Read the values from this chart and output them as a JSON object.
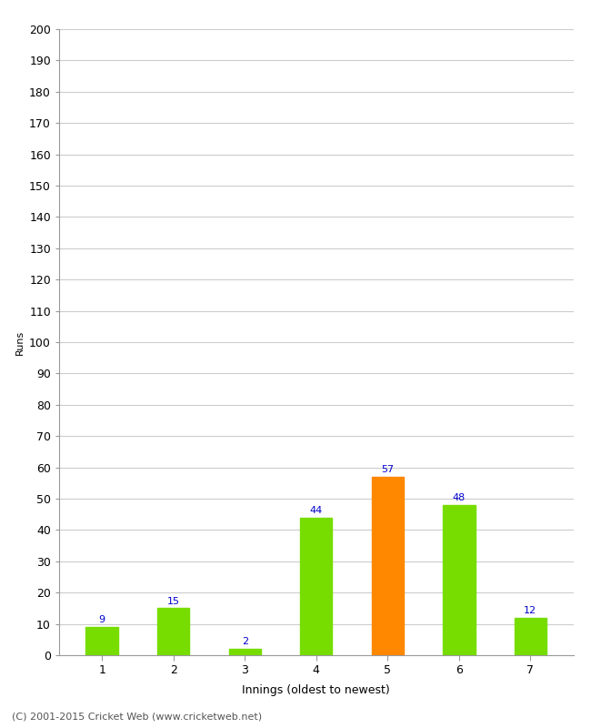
{
  "categories": [
    "1",
    "2",
    "3",
    "4",
    "5",
    "6",
    "7"
  ],
  "values": [
    9,
    15,
    2,
    44,
    57,
    48,
    12
  ],
  "bar_colors": [
    "#77dd00",
    "#77dd00",
    "#77dd00",
    "#77dd00",
    "#ff8800",
    "#77dd00",
    "#77dd00"
  ],
  "xlabel": "Innings (oldest to newest)",
  "ylabel": "Runs",
  "ylim": [
    0,
    200
  ],
  "yticks": [
    0,
    10,
    20,
    30,
    40,
    50,
    60,
    70,
    80,
    90,
    100,
    110,
    120,
    130,
    140,
    150,
    160,
    170,
    180,
    190,
    200
  ],
  "label_color": "#0000cc",
  "label_fontsize": 8,
  "footer": "(C) 2001-2015 Cricket Web (www.cricketweb.net)",
  "background_color": "#ffffff",
  "grid_color": "#cccccc",
  "bar_width": 0.45
}
